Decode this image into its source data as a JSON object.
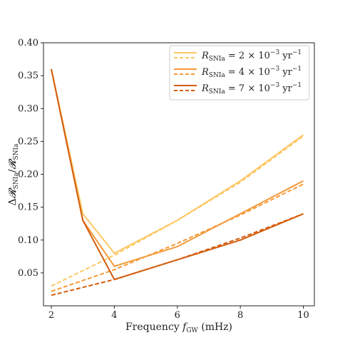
{
  "chart_data": {
    "type": "line",
    "xlabel_prefix": "Frequency ",
    "xlabel_var": "f",
    "xlabel_sub": "GW",
    "xlabel_suffix": " (mHz)",
    "ylabel": "ΔR_SNIa / R_SNIa",
    "xlim": [
      1.75,
      10.35
    ],
    "ylim": [
      0.0,
      0.4
    ],
    "xticks": [
      2,
      4,
      6,
      8,
      10
    ],
    "yticks": [
      0.05,
      0.1,
      0.15,
      0.2,
      0.25,
      0.3,
      0.35,
      0.4
    ],
    "legend_position": "top-right",
    "series": [
      {
        "legend_prefix": "R",
        "legend_sub": "SNIa",
        "legend_value": " = 2 × 10",
        "legend_exp": "−3",
        "legend_unit": " yr",
        "legend_unit_exp": "−1",
        "color": "#fdc865",
        "solid": [
          [
            3,
            0.14
          ],
          [
            4,
            0.08
          ],
          [
            6,
            0.13
          ],
          [
            8,
            0.19
          ],
          [
            10,
            0.26
          ]
        ],
        "dashed": [
          [
            2,
            0.03
          ],
          [
            4,
            0.077
          ],
          [
            6,
            0.13
          ],
          [
            8,
            0.188
          ],
          [
            10,
            0.258
          ]
        ]
      },
      {
        "legend_prefix": "R",
        "legend_sub": "SNIa",
        "legend_value": " = 4 × 10",
        "legend_exp": "−3",
        "legend_unit": " yr",
        "legend_unit_exp": "−1",
        "color": "#f59a3a",
        "solid": [
          [
            3,
            0.13
          ],
          [
            4,
            0.06
          ],
          [
            6,
            0.09
          ],
          [
            8,
            0.14
          ],
          [
            10,
            0.19
          ]
        ],
        "dashed": [
          [
            2,
            0.022
          ],
          [
            4,
            0.055
          ],
          [
            6,
            0.095
          ],
          [
            8,
            0.138
          ],
          [
            10,
            0.185
          ]
        ]
      },
      {
        "legend_prefix": "R",
        "legend_sub": "SNIa",
        "legend_value": " = 7 × 10",
        "legend_exp": "−3",
        "legend_unit": " yr",
        "legend_unit_exp": "−1",
        "color": "#d45d0e",
        "solid": [
          [
            2,
            0.36
          ],
          [
            3,
            0.13
          ],
          [
            4,
            0.04
          ],
          [
            6,
            0.07
          ],
          [
            8,
            0.1
          ],
          [
            10,
            0.14
          ]
        ],
        "dashed": [
          [
            2,
            0.016
          ],
          [
            4,
            0.04
          ],
          [
            6,
            0.07
          ],
          [
            8,
            0.103
          ],
          [
            10,
            0.14
          ]
        ]
      }
    ],
    "extra_segments": [
      {
        "series": 0,
        "points": [
          [
            2,
            0.36
          ],
          [
            3,
            0.14
          ]
        ]
      },
      {
        "series": 1,
        "points": [
          [
            2,
            0.36
          ],
          [
            3,
            0.13
          ]
        ]
      }
    ]
  }
}
